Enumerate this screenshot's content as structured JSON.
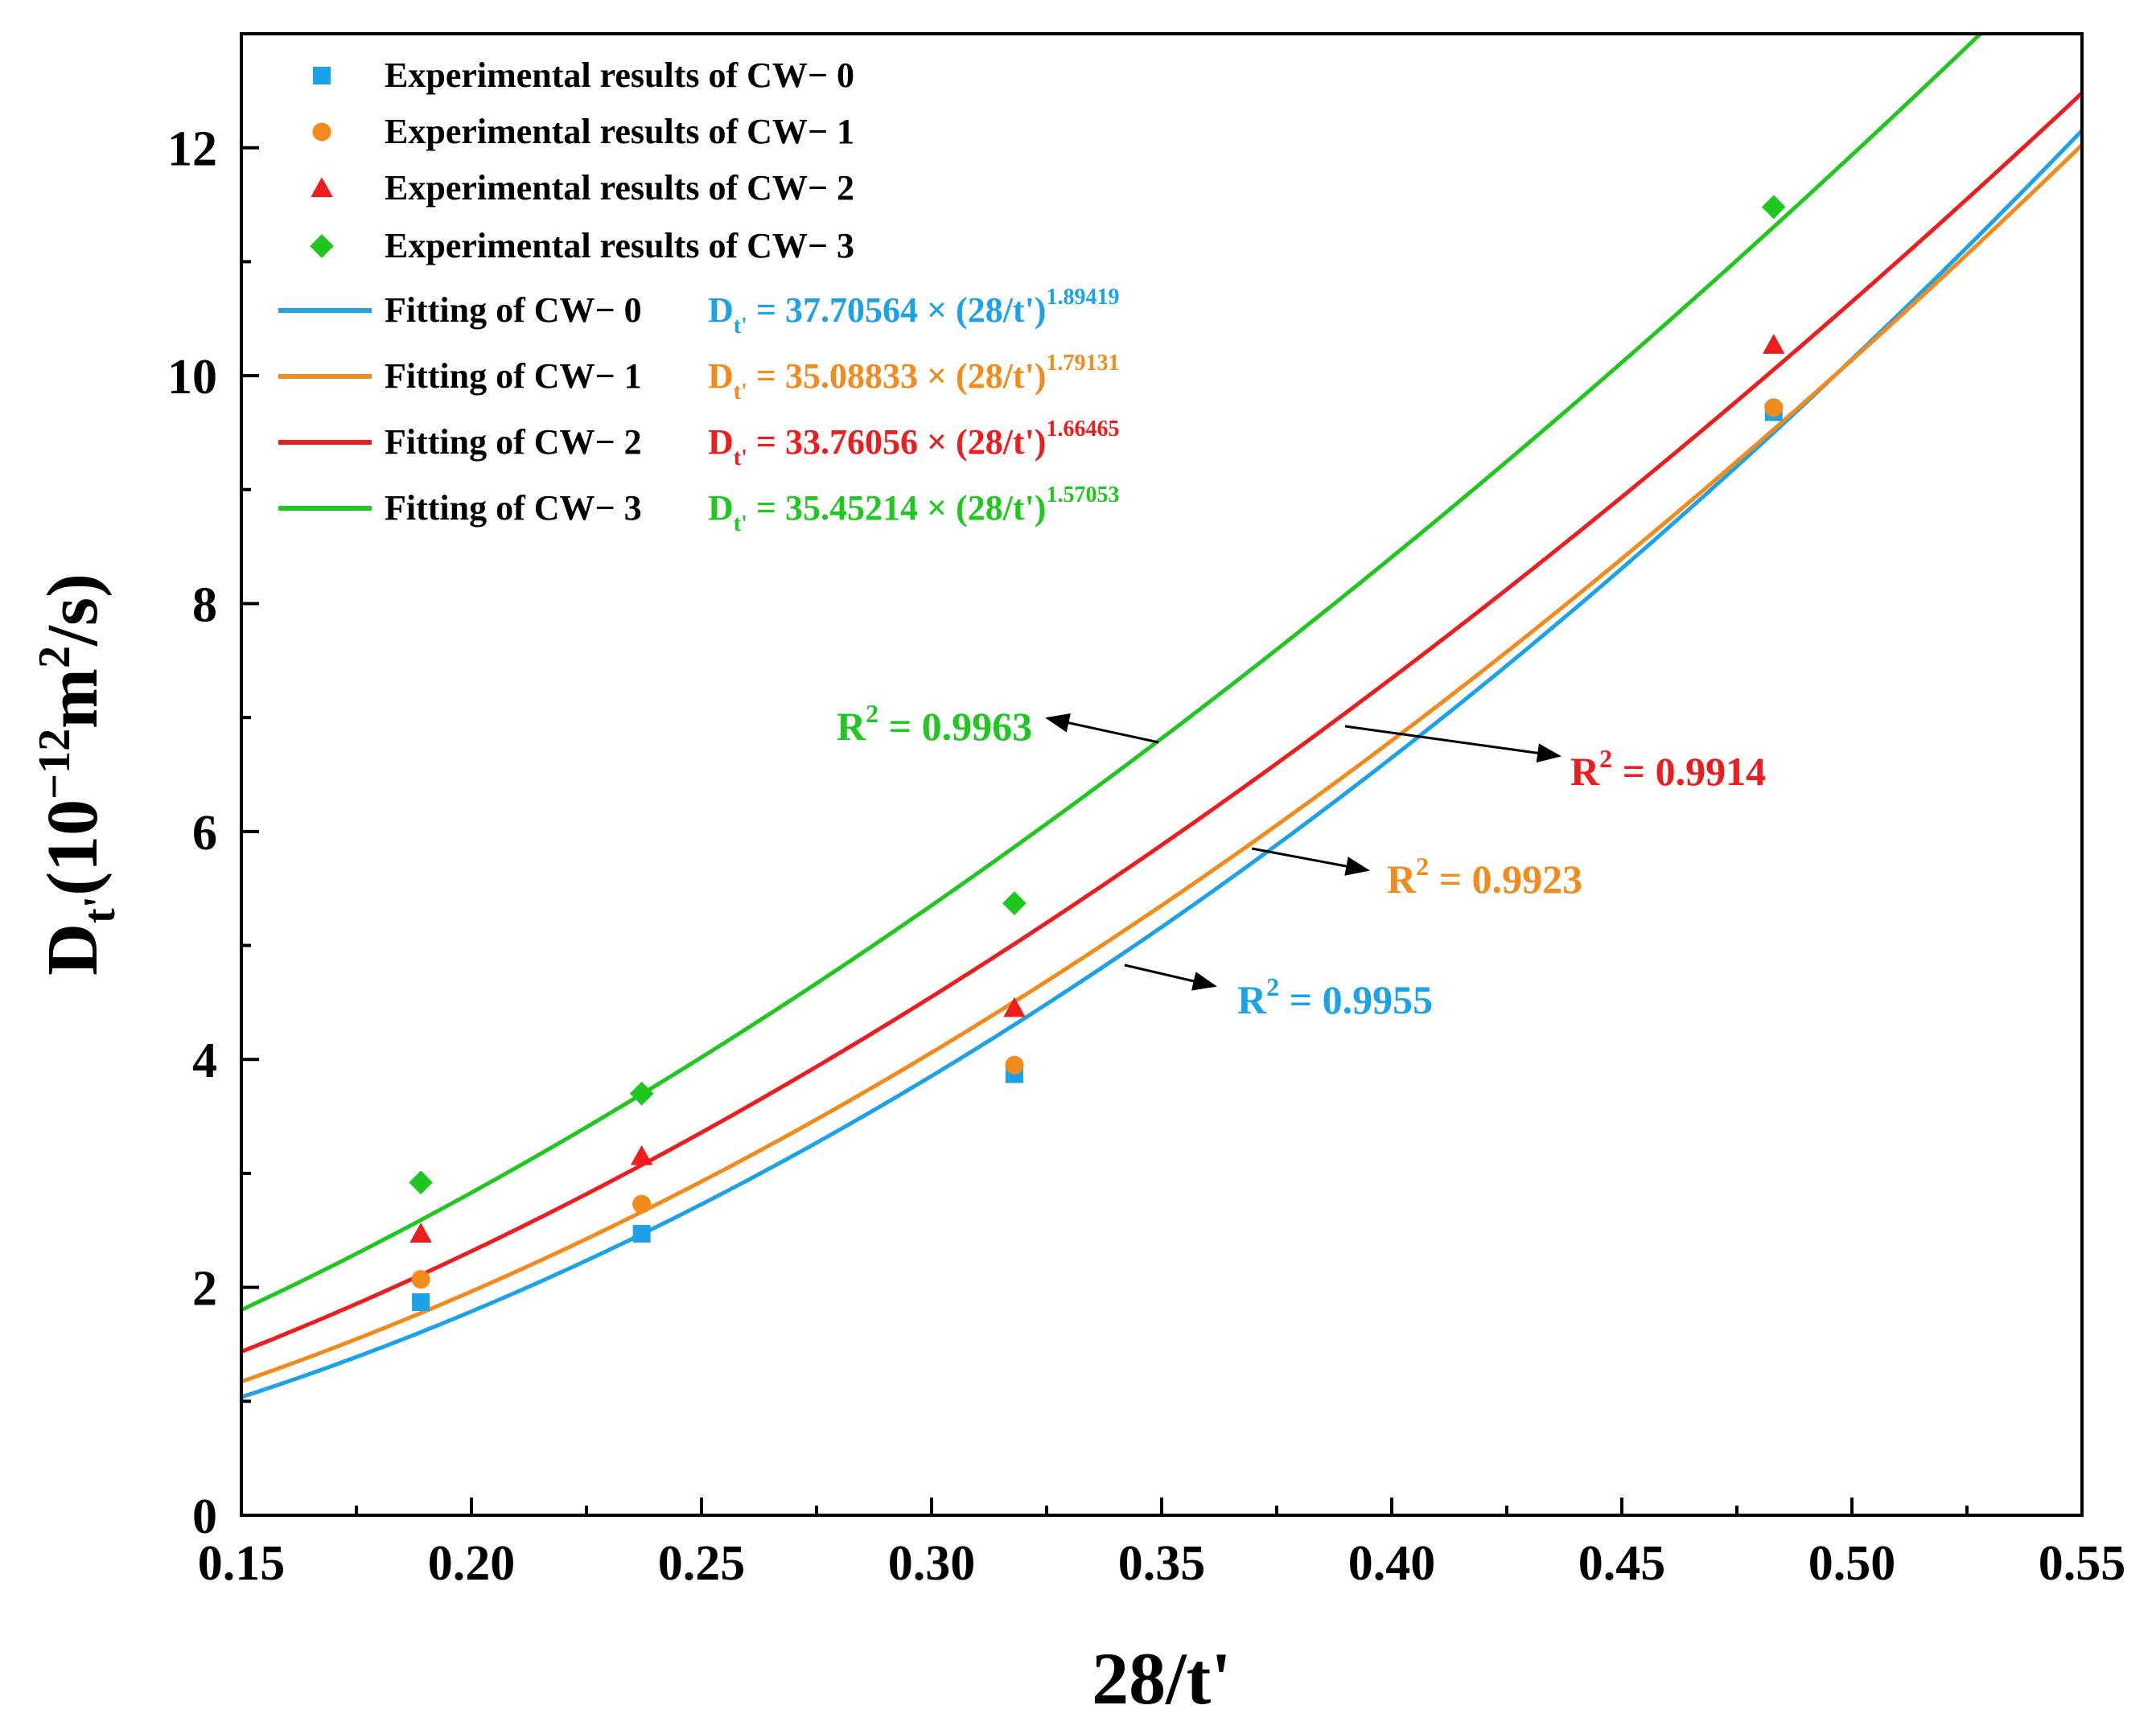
{
  "chart_data": {
    "type": "scatter",
    "title": "",
    "xlabel": "28/t'",
    "ylabel": {
      "base": "D",
      "sub": "t'",
      "unit_open": "(10",
      "unit_exp": "−12",
      "unit_mid": "m",
      "unit_exp2": "2",
      "unit_close": "/s)"
    },
    "xlim": [
      0.15,
      0.55
    ],
    "ylim": [
      0,
      13
    ],
    "x_ticks": [
      0.15,
      0.2,
      0.25,
      0.3,
      0.35,
      0.4,
      0.45,
      0.5,
      0.55
    ],
    "x_tick_labels": [
      "0.15",
      "0.20",
      "0.25",
      "0.30",
      "0.35",
      "0.40",
      "0.45",
      "0.50",
      "0.55"
    ],
    "y_ticks": [
      0,
      2,
      4,
      6,
      8,
      10,
      12
    ],
    "y_tick_labels": [
      "0",
      "2",
      "4",
      "6",
      "8",
      "10",
      "12"
    ],
    "grid": false,
    "legend_position": "top-left",
    "x": [
      0.189,
      0.237,
      0.318,
      0.483
    ],
    "series": [
      {
        "key": "cw0",
        "color": "#1aa3e8",
        "marker": "square",
        "points_label": "Experimental results of CW− 0",
        "values": [
          1.87,
          2.47,
          3.87,
          9.68
        ],
        "fit_label": "Fitting of CW− 0",
        "coef": 37.70564,
        "exponent": 1.89419,
        "coef_text": "37.70564",
        "exponent_text": "1.89419",
        "r2": "0.9955"
      },
      {
        "key": "cw1",
        "color": "#f28a1c",
        "marker": "circle",
        "points_label": "Experimental results of CW− 1",
        "values": [
          2.07,
          2.73,
          3.95,
          9.72
        ],
        "fit_label": "Fitting of CW− 1",
        "coef": 35.08833,
        "exponent": 1.79131,
        "coef_text": "35.08833",
        "exponent_text": "1.79131",
        "r2": "0.9923"
      },
      {
        "key": "cw2",
        "color": "#ee1c1c",
        "marker": "triangle",
        "points_label": "Experimental results of CW− 2",
        "values": [
          2.47,
          3.15,
          4.45,
          10.27
        ],
        "fit_label": "Fitting of CW− 2",
        "coef": 33.76056,
        "exponent": 1.66465,
        "coef_text": "33.76056",
        "exponent_text": "1.66465",
        "r2": "0.9914"
      },
      {
        "key": "cw3",
        "color": "#1ec81e",
        "marker": "diamond",
        "points_label": "Experimental results of CW− 3",
        "values": [
          2.92,
          3.7,
          5.37,
          11.48
        ],
        "fit_label": "Fitting of CW− 3",
        "coef": 35.45214,
        "exponent": 1.57053,
        "coef_text": "35.45214",
        "exponent_text": "1.57053",
        "r2": "0.9963"
      }
    ],
    "equation_parts": {
      "lhs": "D",
      "lhs_sub": "t'",
      "eq": " = ",
      "times": " × (28/t')"
    },
    "r2_prefix": "R",
    "r2_sup": "2",
    "r2_eq": " = "
  }
}
